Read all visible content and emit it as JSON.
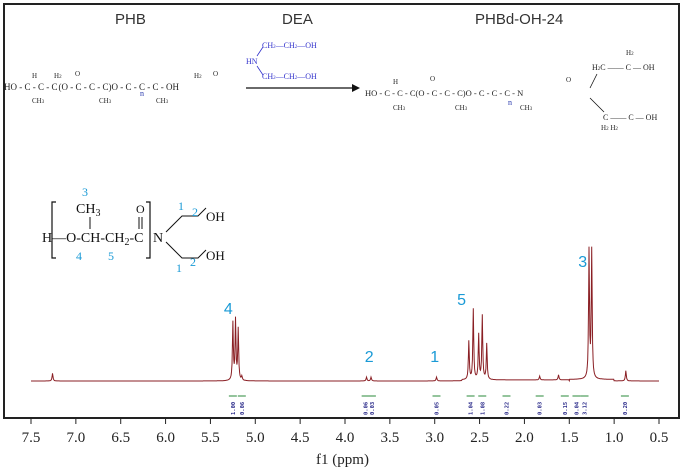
{
  "reaction": {
    "reactant_label": "PHB",
    "reagent_label": "DEA",
    "product_label": "PHBd-OH-24",
    "reactant_formula": {
      "main": "HO-C-C-C(O-C-C-C)O-C-C-C-OH",
      "hetero": [
        "H",
        "H2",
        "O",
        "H",
        "H2",
        "O",
        "H",
        "H2",
        "O"
      ],
      "subs": [
        "CH3",
        "CH3",
        "CH3"
      ],
      "repeat": "n"
    },
    "dea_formula": {
      "top": "CH2-CH2-OH",
      "nh": "HN",
      "bottom": "CH2-CH2-OH"
    },
    "product_formula": {
      "main": "HO-C-C-C(O-C-C-C)O-C-C-C-N",
      "branch_top": "CH2-CH2-OH",
      "branch_bottom": "CH2-CH2-OH",
      "repeat": "n"
    }
  },
  "structure": {
    "chain": "H-O-CH-CH2-C-N",
    "methyl": "CH3",
    "oh_top": "OH",
    "oh_bottom": "OH",
    "carbonyl_o": "O",
    "labels": [
      "3",
      "4",
      "5",
      "1",
      "2",
      "1",
      "2"
    ]
  },
  "peak_labels": [
    "4",
    "2",
    "1",
    "5",
    "3"
  ],
  "integrations": [
    "1.00",
    "0.06",
    "0.06",
    "0.03",
    "0.05",
    "1.04",
    "1.08",
    "0.22",
    "0.03",
    "0.15",
    "0.04",
    "3.12",
    "0.20"
  ],
  "chart_data": {
    "type": "line",
    "xlabel": "f1 (ppm)",
    "x_ticks": [
      7.5,
      7.0,
      6.5,
      6.0,
      5.5,
      5.0,
      4.5,
      4.0,
      3.5,
      3.0,
      2.5,
      2.0,
      1.5,
      1.0,
      0.5
    ],
    "x_tick_labels": [
      "7.5",
      "7.0",
      "6.5",
      "6.0",
      "5.5",
      "5.0",
      "4.5",
      "4.0",
      "3.5",
      "3.0",
      "2.5",
      "2.0",
      "1.5",
      "1.0",
      "0.5"
    ],
    "xlim": [
      7.5,
      0.5
    ],
    "axis_reversed": true,
    "peaks": [
      {
        "ppm": 7.26,
        "height": 0.06
      },
      {
        "ppm": 5.25,
        "height": 0.45
      },
      {
        "ppm": 5.22,
        "height": 0.47
      },
      {
        "ppm": 5.19,
        "height": 0.4
      },
      {
        "ppm": 5.15,
        "height": 0.03
      },
      {
        "ppm": 3.76,
        "height": 0.03
      },
      {
        "ppm": 3.71,
        "height": 0.03
      },
      {
        "ppm": 2.98,
        "height": 0.03
      },
      {
        "ppm": 2.62,
        "height": 0.3
      },
      {
        "ppm": 2.57,
        "height": 0.55
      },
      {
        "ppm": 2.51,
        "height": 0.35
      },
      {
        "ppm": 2.47,
        "height": 0.5
      },
      {
        "ppm": 2.42,
        "height": 0.28
      },
      {
        "ppm": 1.83,
        "height": 0.03
      },
      {
        "ppm": 1.62,
        "height": 0.04
      },
      {
        "ppm": 1.28,
        "height": 1.0
      },
      {
        "ppm": 1.25,
        "height": 1.0
      },
      {
        "ppm": 0.87,
        "height": 0.08
      }
    ]
  }
}
